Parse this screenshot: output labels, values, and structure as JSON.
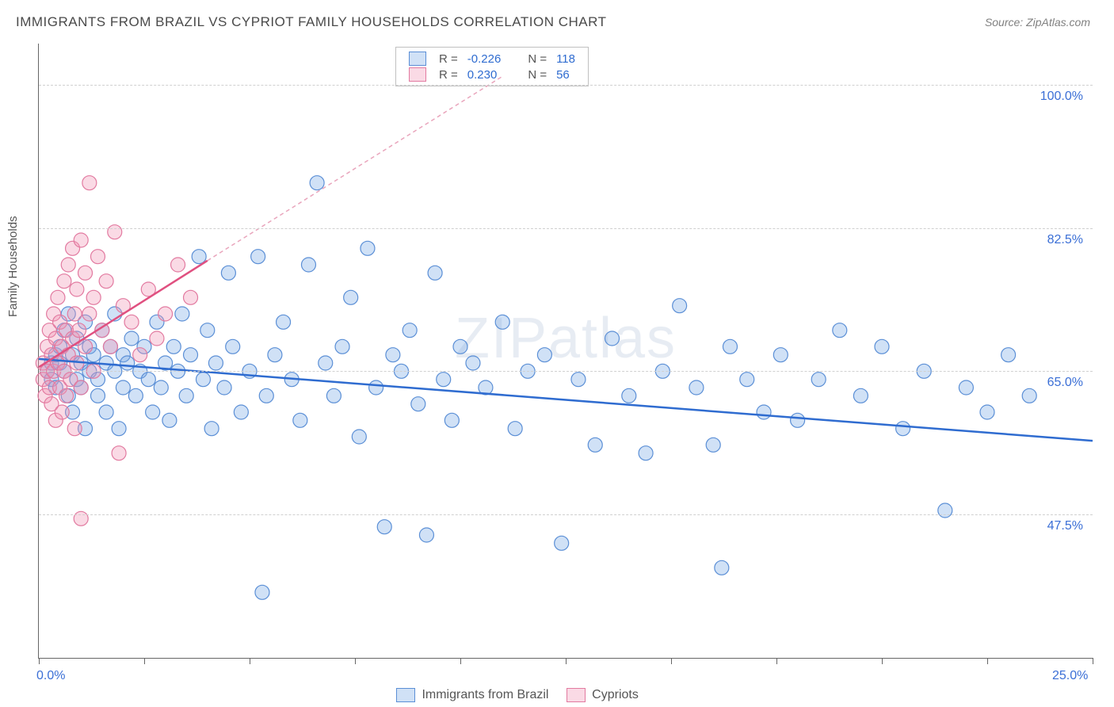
{
  "title": "IMMIGRANTS FROM BRAZIL VS CYPRIOT FAMILY HOUSEHOLDS CORRELATION CHART",
  "source": "Source: ZipAtlas.com",
  "watermark": "ZIPatlas",
  "ylabel": "Family Households",
  "chart": {
    "type": "scatter",
    "xlim": [
      0,
      25
    ],
    "ylim": [
      30,
      105
    ],
    "xticks": [
      0,
      2.5,
      5,
      7.5,
      10,
      12.5,
      15,
      17.5,
      20,
      22.5,
      25
    ],
    "ygrid": [
      47.5,
      65.0,
      82.5,
      100.0
    ],
    "xorigin_label": "0.0%",
    "xmax_label": "25.0%",
    "ytick_labels": [
      "47.5%",
      "65.0%",
      "82.5%",
      "100.0%"
    ],
    "background_color": "#ffffff",
    "grid_color": "#d0d0d0",
    "axis_color": "#666666",
    "series": [
      {
        "name": "Immigrants from Brazil",
        "color_fill": "rgba(120,170,230,0.35)",
        "color_stroke": "#5b8fd6",
        "marker_radius": 9,
        "trend": {
          "x1": 0,
          "y1": 66.5,
          "x2": 25,
          "y2": 56.5,
          "color": "#2f6cd0",
          "width": 2.5,
          "dash": "none"
        },
        "R_label": "R =",
        "R_value": "-0.226",
        "N_label": "N =",
        "N_value": "118",
        "points": [
          [
            0.2,
            65
          ],
          [
            0.3,
            66
          ],
          [
            0.3,
            64
          ],
          [
            0.4,
            67
          ],
          [
            0.4,
            63
          ],
          [
            0.5,
            68
          ],
          [
            0.5,
            66
          ],
          [
            0.6,
            65
          ],
          [
            0.6,
            70
          ],
          [
            0.7,
            62
          ],
          [
            0.7,
            72
          ],
          [
            0.8,
            60
          ],
          [
            0.8,
            67
          ],
          [
            0.9,
            64
          ],
          [
            0.9,
            69
          ],
          [
            1.0,
            66
          ],
          [
            1.0,
            63
          ],
          [
            1.1,
            71
          ],
          [
            1.1,
            58
          ],
          [
            1.2,
            65
          ],
          [
            1.2,
            68
          ],
          [
            1.3,
            67
          ],
          [
            1.4,
            64
          ],
          [
            1.4,
            62
          ],
          [
            1.5,
            70
          ],
          [
            1.6,
            66
          ],
          [
            1.6,
            60
          ],
          [
            1.7,
            68
          ],
          [
            1.8,
            65
          ],
          [
            1.8,
            72
          ],
          [
            1.9,
            58
          ],
          [
            2.0,
            67
          ],
          [
            2.0,
            63
          ],
          [
            2.1,
            66
          ],
          [
            2.2,
            69
          ],
          [
            2.3,
            62
          ],
          [
            2.4,
            65
          ],
          [
            2.5,
            68
          ],
          [
            2.6,
            64
          ],
          [
            2.7,
            60
          ],
          [
            2.8,
            71
          ],
          [
            2.9,
            63
          ],
          [
            3.0,
            66
          ],
          [
            3.1,
            59
          ],
          [
            3.2,
            68
          ],
          [
            3.3,
            65
          ],
          [
            3.4,
            72
          ],
          [
            3.5,
            62
          ],
          [
            3.6,
            67
          ],
          [
            3.8,
            79
          ],
          [
            3.9,
            64
          ],
          [
            4.0,
            70
          ],
          [
            4.1,
            58
          ],
          [
            4.2,
            66
          ],
          [
            4.4,
            63
          ],
          [
            4.5,
            77
          ],
          [
            4.6,
            68
          ],
          [
            4.8,
            60
          ],
          [
            5.0,
            65
          ],
          [
            5.2,
            79
          ],
          [
            5.3,
            38
          ],
          [
            5.4,
            62
          ],
          [
            5.6,
            67
          ],
          [
            5.8,
            71
          ],
          [
            6.0,
            64
          ],
          [
            6.2,
            59
          ],
          [
            6.4,
            78
          ],
          [
            6.6,
            88
          ],
          [
            6.8,
            66
          ],
          [
            7.0,
            62
          ],
          [
            7.2,
            68
          ],
          [
            7.4,
            74
          ],
          [
            7.6,
            57
          ],
          [
            7.8,
            80
          ],
          [
            8.0,
            63
          ],
          [
            8.2,
            46
          ],
          [
            8.4,
            67
          ],
          [
            8.6,
            65
          ],
          [
            8.8,
            70
          ],
          [
            9.0,
            61
          ],
          [
            9.2,
            45
          ],
          [
            9.4,
            77
          ],
          [
            9.6,
            64
          ],
          [
            9.8,
            59
          ],
          [
            10.0,
            68
          ],
          [
            10.3,
            66
          ],
          [
            10.6,
            63
          ],
          [
            11.0,
            71
          ],
          [
            11.3,
            58
          ],
          [
            11.6,
            65
          ],
          [
            12.0,
            67
          ],
          [
            12.4,
            44
          ],
          [
            12.8,
            64
          ],
          [
            13.2,
            56
          ],
          [
            13.6,
            69
          ],
          [
            14.0,
            62
          ],
          [
            14.4,
            55
          ],
          [
            14.8,
            65
          ],
          [
            15.2,
            73
          ],
          [
            15.6,
            63
          ],
          [
            16.0,
            56
          ],
          [
            16.2,
            41
          ],
          [
            16.4,
            68
          ],
          [
            16.8,
            64
          ],
          [
            17.2,
            60
          ],
          [
            17.6,
            67
          ],
          [
            18.0,
            59
          ],
          [
            18.5,
            64
          ],
          [
            19.0,
            70
          ],
          [
            19.5,
            62
          ],
          [
            20.0,
            68
          ],
          [
            20.5,
            58
          ],
          [
            21.0,
            65
          ],
          [
            21.5,
            48
          ],
          [
            22.0,
            63
          ],
          [
            22.5,
            60
          ],
          [
            23.0,
            67
          ],
          [
            23.5,
            62
          ]
        ]
      },
      {
        "name": "Cypriots",
        "color_fill": "rgba(240,150,180,0.35)",
        "color_stroke": "#e27aa0",
        "marker_radius": 9,
        "trend": {
          "x1": 0,
          "y1": 65.5,
          "x2": 4.0,
          "y2": 78.5,
          "color": "#e05080",
          "width": 2.5,
          "dash": "none"
        },
        "trend_ext": {
          "x1": 4.0,
          "y1": 78.5,
          "x2": 11.0,
          "y2": 101.0,
          "color": "#e9a5bc",
          "width": 1.5,
          "dash": "5,4"
        },
        "R_label": "R =",
        "R_value": "0.230",
        "N_label": "N =",
        "N_value": "56",
        "points": [
          [
            0.1,
            64
          ],
          [
            0.1,
            66
          ],
          [
            0.15,
            62
          ],
          [
            0.2,
            68
          ],
          [
            0.2,
            65
          ],
          [
            0.25,
            70
          ],
          [
            0.25,
            63
          ],
          [
            0.3,
            67
          ],
          [
            0.3,
            61
          ],
          [
            0.35,
            72
          ],
          [
            0.35,
            65
          ],
          [
            0.4,
            69
          ],
          [
            0.4,
            59
          ],
          [
            0.45,
            66
          ],
          [
            0.45,
            74
          ],
          [
            0.5,
            63
          ],
          [
            0.5,
            71
          ],
          [
            0.55,
            68
          ],
          [
            0.55,
            60
          ],
          [
            0.6,
            65
          ],
          [
            0.6,
            76
          ],
          [
            0.65,
            70
          ],
          [
            0.65,
            62
          ],
          [
            0.7,
            78
          ],
          [
            0.7,
            67
          ],
          [
            0.75,
            64
          ],
          [
            0.8,
            80
          ],
          [
            0.8,
            69
          ],
          [
            0.85,
            72
          ],
          [
            0.85,
            58
          ],
          [
            0.9,
            75
          ],
          [
            0.9,
            66
          ],
          [
            0.95,
            70
          ],
          [
            1.0,
            81
          ],
          [
            1.0,
            63
          ],
          [
            1.1,
            77
          ],
          [
            1.1,
            68
          ],
          [
            1.2,
            88
          ],
          [
            1.2,
            72
          ],
          [
            1.3,
            74
          ],
          [
            1.3,
            65
          ],
          [
            1.4,
            79
          ],
          [
            1.5,
            70
          ],
          [
            1.6,
            76
          ],
          [
            1.7,
            68
          ],
          [
            1.8,
            82
          ],
          [
            1.0,
            47
          ],
          [
            1.9,
            55
          ],
          [
            2.0,
            73
          ],
          [
            2.2,
            71
          ],
          [
            2.4,
            67
          ],
          [
            2.6,
            75
          ],
          [
            2.8,
            69
          ],
          [
            3.0,
            72
          ],
          [
            3.3,
            78
          ],
          [
            3.6,
            74
          ]
        ]
      }
    ]
  },
  "legend_bottom": {
    "series1": "Immigrants from Brazil",
    "series2": "Cypriots"
  }
}
